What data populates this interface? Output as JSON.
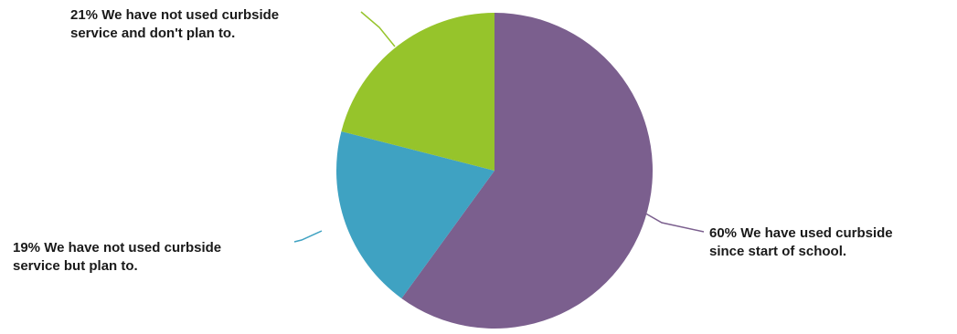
{
  "chart_data": {
    "type": "pie",
    "title": "",
    "start_angle_deg": 0,
    "direction": "clockwise",
    "slices": [
      {
        "value": 60,
        "label_lines": [
          "60% We have used curbside",
          "since start of school."
        ],
        "color": "#7b5f8e"
      },
      {
        "value": 19,
        "label_lines": [
          "19% We have not used curbside",
          "service but plan to."
        ],
        "color": "#3fa2c2"
      },
      {
        "value": 21,
        "label_lines": [
          "21% We have not used curbside",
          "service and don't plan to."
        ],
        "color": "#96c42b"
      }
    ]
  }
}
